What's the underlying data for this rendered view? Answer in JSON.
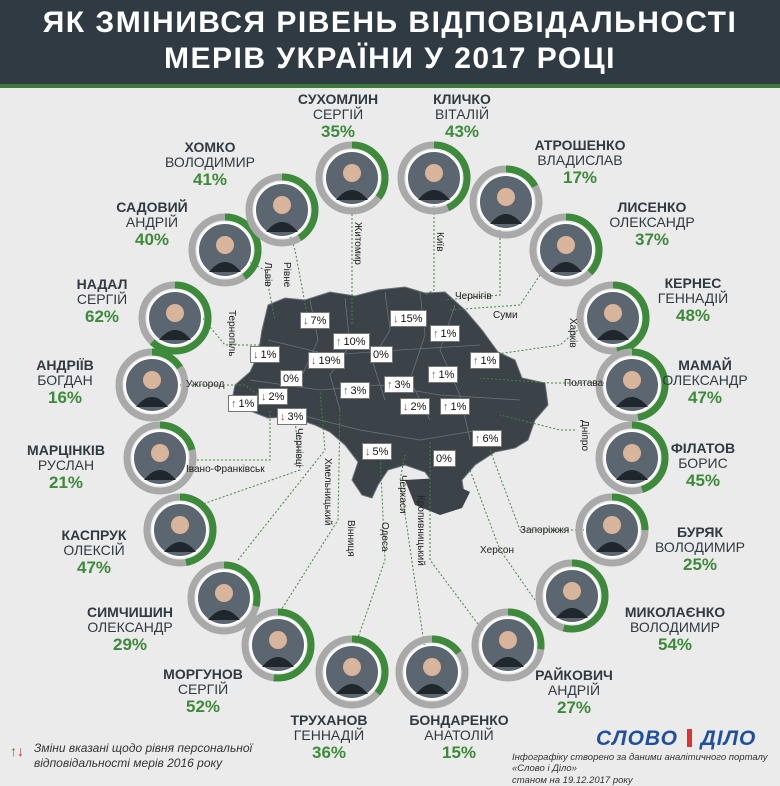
{
  "header": {
    "line1": "ЯК ЗМІНИВСЯ РІВЕНЬ ВІДПОВІДАЛЬНОСТІ",
    "line2": "МЕРІВ УКРАЇНИ У 2017 РОЦІ"
  },
  "colors": {
    "header_bg": "#2f3a42",
    "accent_green": "#3d8a3a",
    "ring_grey": "#a9a9a9",
    "down_red": "#c0352a",
    "map_fill": "#3b4248"
  },
  "mayors": [
    {
      "surname": "СУХОМЛИН",
      "name": "СЕРГІЙ",
      "pct": "35%",
      "value": 35,
      "city": "Житомир"
    },
    {
      "surname": "КЛИЧКО",
      "name": "ВІТАЛІЙ",
      "pct": "43%",
      "value": 43,
      "city": "Київ"
    },
    {
      "surname": "АТРОШЕНКО",
      "name": "ВЛАДИСЛАВ",
      "pct": "17%",
      "value": 17,
      "city": "Чернігів"
    },
    {
      "surname": "ЛИСЕНКО",
      "name": "ОЛЕКСАНДР",
      "pct": "37%",
      "value": 37,
      "city": "Суми"
    },
    {
      "surname": "КЕРНЕС",
      "name": "ГЕННАДІЙ",
      "pct": "48%",
      "value": 48,
      "city": "Харків"
    },
    {
      "surname": "МАМАЙ",
      "name": "ОЛЕКСАНДР",
      "pct": "47%",
      "value": 47,
      "city": "Полтава"
    },
    {
      "surname": "ФІЛАТОВ",
      "name": "БОРИС",
      "pct": "45%",
      "value": 45,
      "city": "Дніпро"
    },
    {
      "surname": "БУРЯК",
      "name": "ВОЛОДИМИР",
      "pct": "25%",
      "value": 25,
      "city": "Запоріжжя"
    },
    {
      "surname": "МИКОЛАЄНКО",
      "name": "ВОЛОДИМИР",
      "pct": "54%",
      "value": 54,
      "city": "Херсон"
    },
    {
      "surname": "РАЙКОВИЧ",
      "name": "АНДРІЙ",
      "pct": "27%",
      "value": 27,
      "city": "Кропивницький"
    },
    {
      "surname": "БОНДАРЕНКО",
      "name": "АНАТОЛІЙ",
      "pct": "15%",
      "value": 15,
      "city": "Черкаси"
    },
    {
      "surname": "ТРУХАНОВ",
      "name": "ГЕННАДІЙ",
      "pct": "36%",
      "value": 36,
      "city": "Одеса"
    },
    {
      "surname": "МОРГУНОВ",
      "name": "СЕРГІЙ",
      "pct": "52%",
      "value": 52,
      "city": "Вінниця"
    },
    {
      "surname": "СИМЧИШИН",
      "name": "ОЛЕКСАНДР",
      "pct": "29%",
      "value": 29,
      "city": "Хмельницький"
    },
    {
      "surname": "КАСПРУК",
      "name": "ОЛЕКСІЙ",
      "pct": "47%",
      "value": 47,
      "city": "Чернівці"
    },
    {
      "surname": "МАРЦІНКІВ",
      "name": "РУСЛАН",
      "pct": "21%",
      "value": 21,
      "city": "Івано-Франківськ"
    },
    {
      "surname": "АНДРІЇВ",
      "name": "БОГДАН",
      "pct": "16%",
      "value": 16,
      "city": "Ужгород"
    },
    {
      "surname": "НАДАЛ",
      "name": "СЕРГІЙ",
      "pct": "62%",
      "value": 62,
      "city": "Тернопіль"
    },
    {
      "surname": "САДОВИЙ",
      "name": "АНДРІЙ",
      "pct": "40%",
      "value": 40,
      "city": "Львів"
    },
    {
      "surname": "ХОМКО",
      "name": "ВОЛОДИМИР",
      "pct": "41%",
      "value": 41,
      "city": "Рівне"
    }
  ],
  "changes": [
    {
      "text": "7%",
      "dir": "down"
    },
    {
      "text": "15%",
      "dir": "down"
    },
    {
      "text": "10%",
      "dir": "up"
    },
    {
      "text": "1%",
      "dir": "up"
    },
    {
      "text": "0%",
      "dir": "none"
    },
    {
      "text": "1%",
      "dir": "down"
    },
    {
      "text": "19%",
      "dir": "down"
    },
    {
      "text": "0%",
      "dir": "none"
    },
    {
      "text": "1%",
      "dir": "up"
    },
    {
      "text": "3%",
      "dir": "up"
    },
    {
      "text": "3%",
      "dir": "up"
    },
    {
      "text": "1%",
      "dir": "up"
    },
    {
      "text": "1%",
      "dir": "up"
    },
    {
      "text": "2%",
      "dir": "down"
    },
    {
      "text": "2%",
      "dir": "down"
    },
    {
      "text": "1%",
      "dir": "up"
    },
    {
      "text": "3%",
      "dir": "down"
    },
    {
      "text": "6%",
      "dir": "up"
    },
    {
      "text": "5%",
      "dir": "down"
    },
    {
      "text": "0%",
      "dir": "none"
    }
  ],
  "legend": {
    "text": "Зміни вказані щодо рівня персональної відповідальності мерів 2016 року"
  },
  "logo": {
    "left": "СЛОВО",
    "right": "ДІЛО"
  },
  "credit": {
    "line1": "Інфографіку створено за даними аналітичного порталу «Слово і Діло»",
    "line2": "станом на 19.12.2017 року"
  }
}
